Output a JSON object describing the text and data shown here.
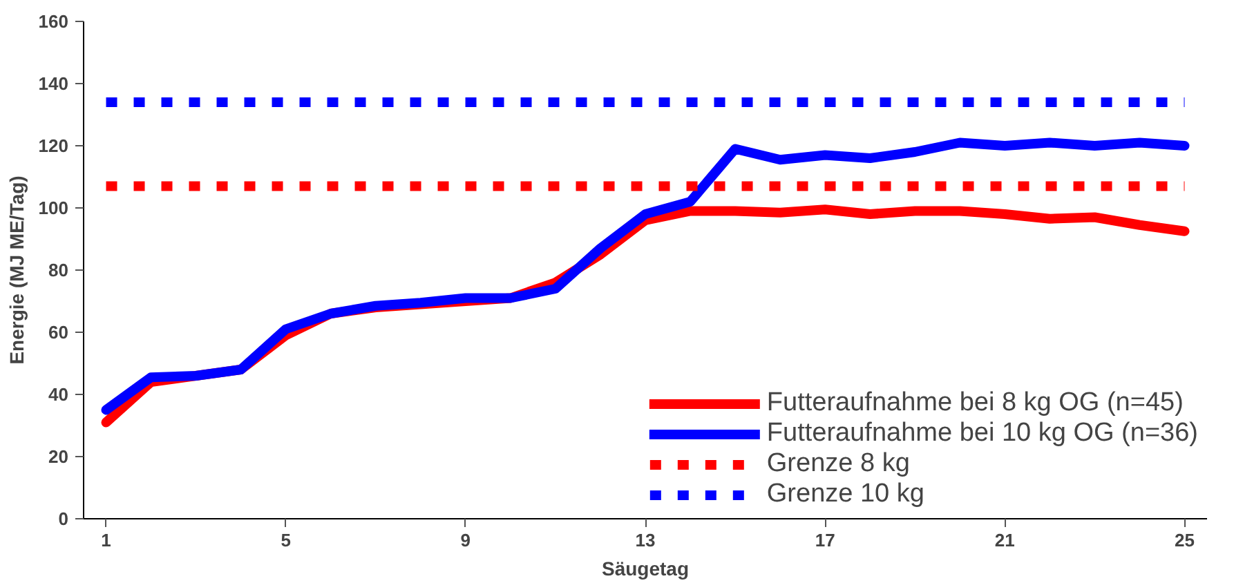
{
  "chart_data": {
    "type": "line",
    "xlabel": "Säugetag",
    "ylabel": "Energie (MJ ME/Tag)",
    "x": [
      1,
      2,
      3,
      4,
      5,
      6,
      7,
      8,
      9,
      10,
      11,
      12,
      13,
      14,
      15,
      16,
      17,
      18,
      19,
      20,
      21,
      22,
      23,
      24,
      25
    ],
    "xlim": [
      0.5,
      25.5
    ],
    "xticks": [
      1,
      5,
      9,
      13,
      17,
      21,
      25
    ],
    "ylim": [
      0,
      160
    ],
    "yticks": [
      0,
      20,
      40,
      60,
      80,
      100,
      120,
      140,
      160
    ],
    "grid": false,
    "legend": "bottom right",
    "marker": "none",
    "line_style": "solid",
    "series": [
      {
        "name": "Futteraufnahme bei 8 kg OG (n=45)",
        "color": "#ff0000",
        "values": [
          31,
          44,
          46,
          48,
          59,
          66,
          68,
          69,
          70,
          71,
          76,
          85,
          96,
          99,
          99,
          98.5,
          99.5,
          98,
          99,
          99,
          98,
          96.5,
          97,
          94.5,
          92.5
        ]
      },
      {
        "name": "Futteraufnahme bei 10 kg OG (n=36)",
        "color": "#0000ff",
        "values": [
          35,
          45.5,
          46,
          48,
          61,
          66,
          68.5,
          69.5,
          71,
          71,
          74,
          87,
          98,
          102,
          119,
          115.5,
          117,
          116,
          118,
          121,
          120,
          121,
          120,
          121,
          120
        ]
      }
    ],
    "ref_lines": [
      {
        "axis": "y",
        "value": 107,
        "label": "Grenze 8 kg",
        "color": "#ff0000",
        "line_style": "dashed"
      },
      {
        "axis": "y",
        "value": 134,
        "label": "Grenze 10 kg",
        "color": "#0000ff",
        "line_style": "dashed"
      }
    ]
  }
}
